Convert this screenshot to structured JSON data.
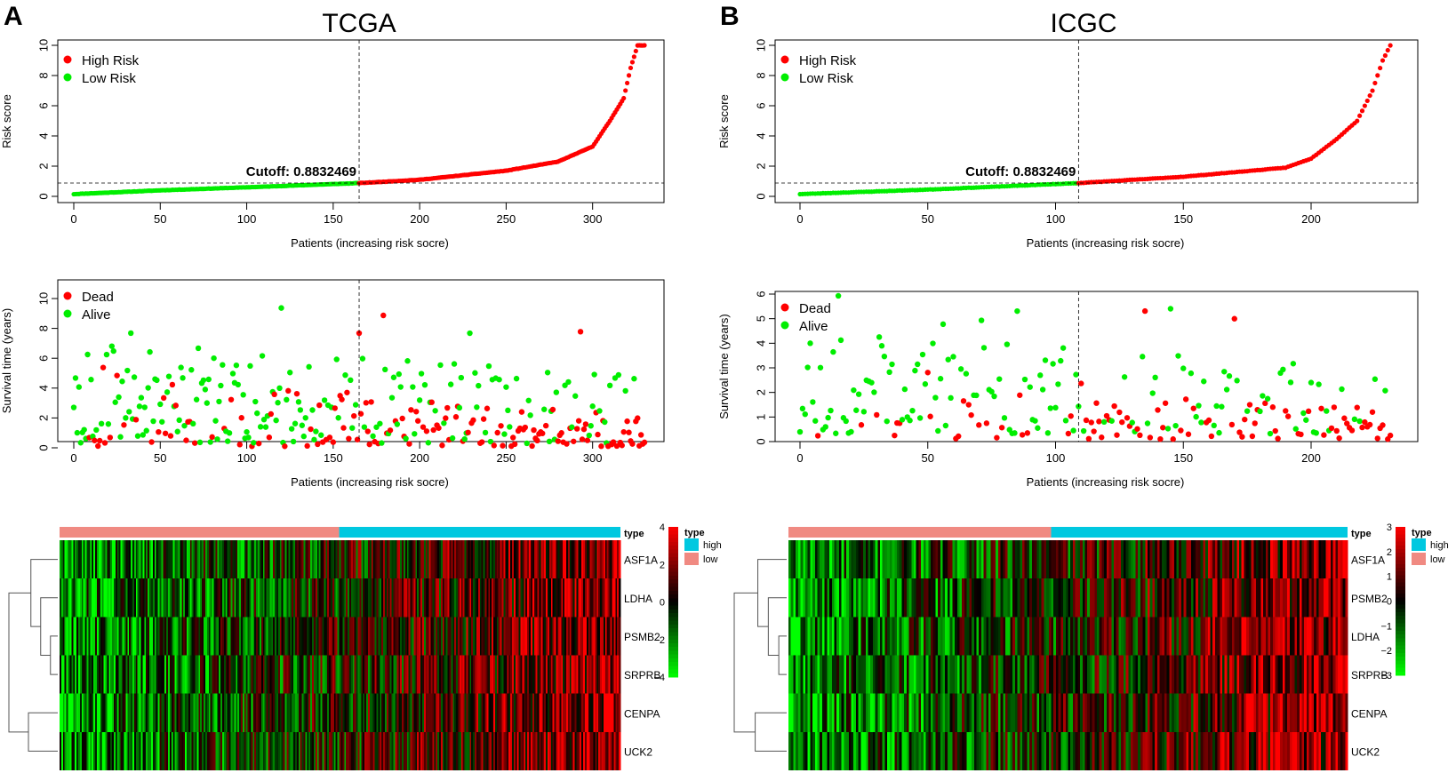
{
  "panels": [
    {
      "letter": "A",
      "title": "TCGA",
      "n_patients": 331,
      "cutoff_index": 165,
      "risk_legend": [
        "High Risk",
        "Low Risk"
      ],
      "survival_legend": [
        "Dead",
        "Alive"
      ],
      "cutoff_label": "Cutoff: 0.8832469",
      "genes": [
        "ASF1A",
        "LDHA",
        "PSMB2",
        "SRPRB",
        "CENPA",
        "UCK2"
      ],
      "color_scale_ticks": [
        "4",
        "2",
        "0",
        "−2",
        "−4"
      ],
      "type_legend": [
        "type",
        "high",
        "low"
      ],
      "type_bar_label": "type"
    },
    {
      "letter": "B",
      "title": "ICGC",
      "n_patients": 232,
      "cutoff_index": 109,
      "risk_legend": [
        "High Risk",
        "Low Risk"
      ],
      "survival_legend": [
        "Dead",
        "Alive"
      ],
      "cutoff_label": "Cutoff: 0.8832469",
      "genes": [
        "ASF1A",
        "PSMB2",
        "LDHA",
        "SRPRB",
        "CENPA",
        "UCK2"
      ],
      "color_scale_ticks": [
        "3",
        "2",
        "1",
        "0",
        "−1",
        "−2",
        "−3"
      ],
      "type_legend": [
        "type",
        "high",
        "low"
      ],
      "type_bar_label": "type"
    }
  ],
  "colors": {
    "high": "#ff0000",
    "low": "#00ee00",
    "type_high": "#00c8e0",
    "type_low": "#f08a82",
    "heat_red": "#ff0000",
    "heat_green": "#00ff00",
    "heat_black": "#000000"
  },
  "chart_data": [
    {
      "type": "scatter",
      "title": "TCGA",
      "xlabel": "Patients (increasing risk socre)",
      "ylabel": "Risk score",
      "xticks": [
        0,
        50,
        100,
        150,
        200,
        250,
        300
      ],
      "yticks": [
        0,
        2,
        4,
        6,
        8,
        10
      ],
      "xlim": [
        0,
        331
      ],
      "ylim": [
        0,
        10
      ],
      "cutoff": 0.8832469,
      "cutoff_label": "Cutoff: 0.8832469",
      "cutoff_index": 165,
      "series": [
        {
          "name": "High Risk"
        },
        {
          "name": "Low Risk"
        }
      ],
      "n": 331,
      "risk_anchors": [
        [
          0,
          0.15
        ],
        [
          50,
          0.4
        ],
        [
          100,
          0.6
        ],
        [
          165,
          0.88
        ],
        [
          200,
          1.1
        ],
        [
          250,
          1.7
        ],
        [
          280,
          2.3
        ],
        [
          300,
          3.3
        ],
        [
          310,
          5
        ],
        [
          318,
          6.5
        ],
        [
          322,
          8.5
        ],
        [
          326,
          10
        ],
        [
          330,
          10
        ]
      ]
    },
    {
      "type": "scatter",
      "title": "TCGA",
      "xlabel": "Patients (increasing risk socre)",
      "ylabel": "Survival time (years)",
      "xticks": [
        0,
        50,
        100,
        150,
        200,
        250,
        300
      ],
      "yticks": [
        0,
        2,
        4,
        6,
        8,
        10
      ],
      "xlim": [
        0,
        331
      ],
      "ylim": [
        0,
        10
      ],
      "series": [
        {
          "name": "Dead"
        },
        {
          "name": "Alive"
        }
      ],
      "n": 331
    },
    {
      "type": "heatmap",
      "title": "TCGA",
      "rows": [
        "ASF1A",
        "LDHA",
        "PSMB2",
        "SRPRB",
        "CENPA",
        "UCK2"
      ],
      "n_columns": 331,
      "split_index": 165,
      "color_range": [
        -4,
        4
      ],
      "legend": [
        {
          "name": "high"
        },
        {
          "name": "low"
        }
      ]
    },
    {
      "type": "scatter",
      "title": "ICGC",
      "xlabel": "Patients (increasing risk socre)",
      "ylabel": "Risk score",
      "xticks": [
        0,
        50,
        100,
        150,
        200
      ],
      "yticks": [
        0,
        2,
        4,
        6,
        8,
        10
      ],
      "xlim": [
        0,
        232
      ],
      "ylim": [
        0,
        10
      ],
      "cutoff": 0.8832469,
      "cutoff_label": "Cutoff: 0.8832469",
      "cutoff_index": 109,
      "series": [
        {
          "name": "High Risk"
        },
        {
          "name": "Low Risk"
        }
      ],
      "n": 232,
      "risk_anchors": [
        [
          0,
          0.15
        ],
        [
          50,
          0.45
        ],
        [
          109,
          0.88
        ],
        [
          150,
          1.3
        ],
        [
          190,
          1.9
        ],
        [
          200,
          2.5
        ],
        [
          210,
          3.8
        ],
        [
          218,
          5
        ],
        [
          224,
          7
        ],
        [
          228,
          9
        ],
        [
          231,
          10
        ]
      ]
    },
    {
      "type": "scatter",
      "title": "ICGC",
      "xlabel": "Patients (increasing risk socre)",
      "ylabel": "Survival time (years)",
      "xticks": [
        0,
        50,
        100,
        150,
        200
      ],
      "yticks": [
        0,
        1,
        2,
        3,
        4,
        5,
        6
      ],
      "xlim": [
        0,
        232
      ],
      "ylim": [
        0,
        6
      ],
      "series": [
        {
          "name": "Dead"
        },
        {
          "name": "Alive"
        }
      ],
      "n": 232
    },
    {
      "type": "heatmap",
      "title": "ICGC",
      "rows": [
        "ASF1A",
        "PSMB2",
        "LDHA",
        "SRPRB",
        "CENPA",
        "UCK2"
      ],
      "n_columns": 232,
      "split_index": 109,
      "color_range": [
        -3,
        3
      ],
      "legend": [
        {
          "name": "high"
        },
        {
          "name": "low"
        }
      ]
    }
  ]
}
